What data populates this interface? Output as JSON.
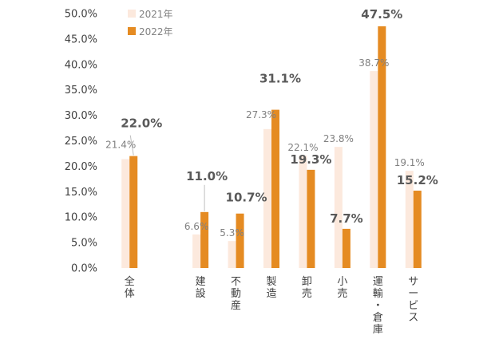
{
  "chart_data": {
    "type": "bar",
    "categories": [
      [
        "全",
        "体"
      ],
      [],
      [
        "建",
        "設"
      ],
      [
        "不",
        "動",
        "産"
      ],
      [
        "製",
        "造"
      ],
      [
        "卸",
        "売"
      ],
      [
        "小",
        "売"
      ],
      [
        "運",
        "輸",
        "・",
        "倉",
        "庫"
      ],
      [
        "サ",
        "ー",
        "ビ",
        "ス"
      ]
    ],
    "series": [
      {
        "name": "2021年",
        "color": "#fce9dd",
        "values": [
          21.4,
          null,
          6.6,
          5.3,
          27.3,
          22.1,
          23.8,
          38.7,
          19.1
        ],
        "labels": [
          "21.4%",
          "",
          "6.6%",
          "5.3%",
          "27.3%",
          "22.1%",
          "23.8%",
          "38.7%",
          "19.1%"
        ]
      },
      {
        "name": "2022年",
        "color": "#e58b22",
        "values": [
          22.0,
          null,
          11.0,
          10.7,
          31.1,
          19.3,
          7.7,
          47.5,
          15.2
        ],
        "labels": [
          "22.0%",
          "",
          "11.0%",
          "10.7%",
          "31.1%",
          "19.3%",
          "7.7%",
          "47.5%",
          "15.2%"
        ]
      }
    ],
    "yticks": [
      "0.0%",
      "5.0%",
      "10.0%",
      "15.0%",
      "20.0%",
      "25.0%",
      "30.0%",
      "35.0%",
      "40.0%",
      "45.0%",
      "50.0%"
    ],
    "ylim": [
      0,
      50
    ],
    "grid": false,
    "legend": "top-left"
  }
}
